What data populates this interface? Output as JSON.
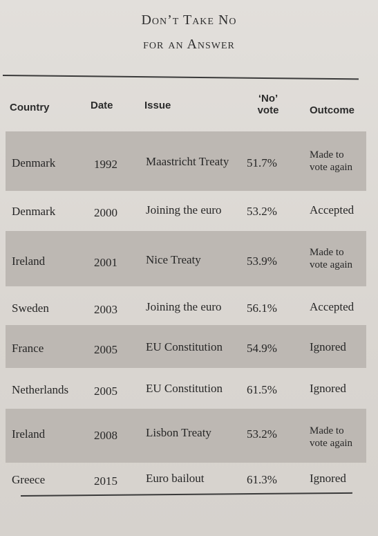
{
  "title": {
    "line1": "Don’t Take No",
    "line2": "for an Answer"
  },
  "headers": {
    "country": "Country",
    "date": "Date",
    "issue": "Issue",
    "no_vote": "‘No’ vote",
    "outcome": "Outcome"
  },
  "rows": [
    {
      "country": "Denmark",
      "date": "1992",
      "issue": "Maastricht Treaty",
      "no_vote": "51.7%",
      "outcome": "Made to vote again",
      "shaded": true
    },
    {
      "country": "Denmark",
      "date": "2000",
      "issue": "Joining the euro",
      "no_vote": "53.2%",
      "outcome": "Accepted",
      "shaded": false
    },
    {
      "country": "Ireland",
      "date": "2001",
      "issue": "Nice Treaty",
      "no_vote": "53.9%",
      "outcome": "Made to vote again",
      "shaded": true
    },
    {
      "country": "Sweden",
      "date": "2003",
      "issue": "Joining the euro",
      "no_vote": "56.1%",
      "outcome": "Accepted",
      "shaded": false
    },
    {
      "country": "France",
      "date": "2005",
      "issue": "EU Constitution",
      "no_vote": "54.9%",
      "outcome": "Ignored",
      "shaded": true
    },
    {
      "country": "Netherlands",
      "date": "2005",
      "issue": "EU Constitution",
      "no_vote": "61.5%",
      "outcome": "Ignored",
      "shaded": false
    },
    {
      "country": "Ireland",
      "date": "2008",
      "issue": "Lisbon Treaty",
      "no_vote": "53.2%",
      "outcome": "Made to vote again",
      "shaded": true
    },
    {
      "country": "Greece",
      "date": "2015",
      "issue": "Euro bailout",
      "no_vote": "61.3%",
      "outcome": "Ignored",
      "shaded": false
    }
  ]
}
